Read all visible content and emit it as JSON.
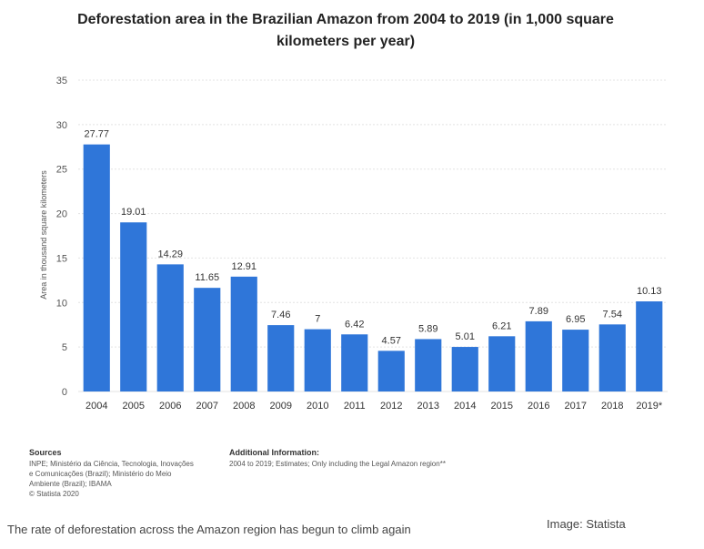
{
  "chart_data": {
    "type": "bar",
    "title": "Deforestation area in the Brazilian Amazon from 2004 to 2019 (in 1,000 square kilometers per year)",
    "ylabel": "Area in thousand square kilometers",
    "xlabel": "",
    "ylim": [
      0,
      35
    ],
    "yticks": [
      0,
      5,
      10,
      15,
      20,
      25,
      30,
      35
    ],
    "grid": true,
    "categories": [
      "2004",
      "2005",
      "2006",
      "2007",
      "2008",
      "2009",
      "2010",
      "2011",
      "2012",
      "2013",
      "2014",
      "2015",
      "2016",
      "2017",
      "2018",
      "2019*"
    ],
    "values": [
      27.77,
      19.01,
      14.29,
      11.65,
      12.91,
      7.46,
      7,
      6.42,
      4.57,
      5.89,
      5.01,
      6.21,
      7.89,
      6.95,
      7.54,
      10.13
    ],
    "value_labels": [
      "27.77",
      "19.01",
      "14.29",
      "11.65",
      "12.91",
      "7.46",
      "7",
      "6.42",
      "4.57",
      "5.89",
      "5.01",
      "6.21",
      "7.89",
      "6.95",
      "7.54",
      "10.13"
    ],
    "bar_color": "#2f76d9"
  },
  "sources": {
    "heading": "Sources",
    "lines": [
      "INPE; Ministério da Ciência, Tecnologia, Inovações",
      "e Comunicações (Brazil); Ministério do Meio",
      "Ambiente (Brazil); IBAMA",
      "© Statista 2020"
    ]
  },
  "additional_info": {
    "heading": "Additional Information:",
    "text": "2004 to 2019; Estimates; Only including the Legal Amazon region**"
  },
  "caption": "The rate of deforestation across the Amazon region has begun to climb again",
  "credit": "Image: Statista"
}
